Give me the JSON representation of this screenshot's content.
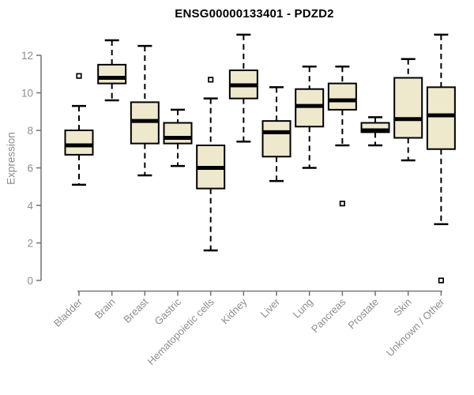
{
  "title": "ENSG00000133401 - PDZD2",
  "chart_data": {
    "type": "boxplot",
    "title": "ENSG00000133401 - PDZD2",
    "xlabel": "",
    "ylabel": "Expression",
    "ylim": [
      0,
      13.4
    ],
    "yticks": [
      0,
      2,
      4,
      6,
      8,
      10,
      12
    ],
    "grid": false,
    "legend": "none",
    "categories": [
      "Bladder",
      "Brain",
      "Breast",
      "Gastric",
      "Hematopoietic cells",
      "Kidney",
      "Liver",
      "Lung",
      "Pancreas",
      "Prostate",
      "Skin",
      "Unknown / Other"
    ],
    "boxes": [
      {
        "category": "Bladder",
        "whisker_low": 5.1,
        "q1": 6.7,
        "median": 7.2,
        "q3": 8.0,
        "whisker_high": 9.3,
        "outliers": [
          10.9
        ]
      },
      {
        "category": "Brain",
        "whisker_low": 9.6,
        "q1": 10.5,
        "median": 10.8,
        "q3": 11.5,
        "whisker_high": 12.8,
        "outliers": []
      },
      {
        "category": "Breast",
        "whisker_low": 5.6,
        "q1": 7.3,
        "median": 8.5,
        "q3": 9.5,
        "whisker_high": 12.5,
        "outliers": []
      },
      {
        "category": "Gastric",
        "whisker_low": 6.1,
        "q1": 7.3,
        "median": 7.6,
        "q3": 8.4,
        "whisker_high": 9.1,
        "outliers": []
      },
      {
        "category": "Hematopoietic cells",
        "whisker_low": 1.6,
        "q1": 4.9,
        "median": 6.0,
        "q3": 7.2,
        "whisker_high": 9.7,
        "outliers": [
          10.7
        ]
      },
      {
        "category": "Kidney",
        "whisker_low": 7.4,
        "q1": 9.7,
        "median": 10.4,
        "q3": 11.2,
        "whisker_high": 13.1,
        "outliers": []
      },
      {
        "category": "Liver",
        "whisker_low": 5.3,
        "q1": 6.6,
        "median": 7.9,
        "q3": 8.5,
        "whisker_high": 10.3,
        "outliers": []
      },
      {
        "category": "Lung",
        "whisker_low": 6.0,
        "q1": 8.2,
        "median": 9.3,
        "q3": 10.2,
        "whisker_high": 11.4,
        "outliers": []
      },
      {
        "category": "Pancreas",
        "whisker_low": 7.2,
        "q1": 9.1,
        "median": 9.6,
        "q3": 10.5,
        "whisker_high": 11.4,
        "outliers": [
          4.1
        ]
      },
      {
        "category": "Prostate",
        "whisker_low": 7.2,
        "q1": 7.9,
        "median": 8.0,
        "q3": 8.4,
        "whisker_high": 8.7,
        "outliers": []
      },
      {
        "category": "Skin",
        "whisker_low": 6.4,
        "q1": 7.6,
        "median": 8.6,
        "q3": 10.8,
        "whisker_high": 11.8,
        "outliers": []
      },
      {
        "category": "Unknown / Other",
        "whisker_low": 3.0,
        "q1": 7.0,
        "median": 8.8,
        "q3": 10.3,
        "whisker_high": 13.1,
        "outliers": [
          0.0
        ]
      }
    ],
    "colors": {
      "box_fill": "#EEE8CD",
      "box_stroke": "#000000",
      "median": "#000000",
      "whisker": "#000000",
      "outlier_stroke": "#000000",
      "outlier_fill": "#FFFFFF",
      "axis": "#787878",
      "tick_label": "#8A8D90",
      "title": "#000000",
      "background": "#FFFFFF"
    }
  }
}
